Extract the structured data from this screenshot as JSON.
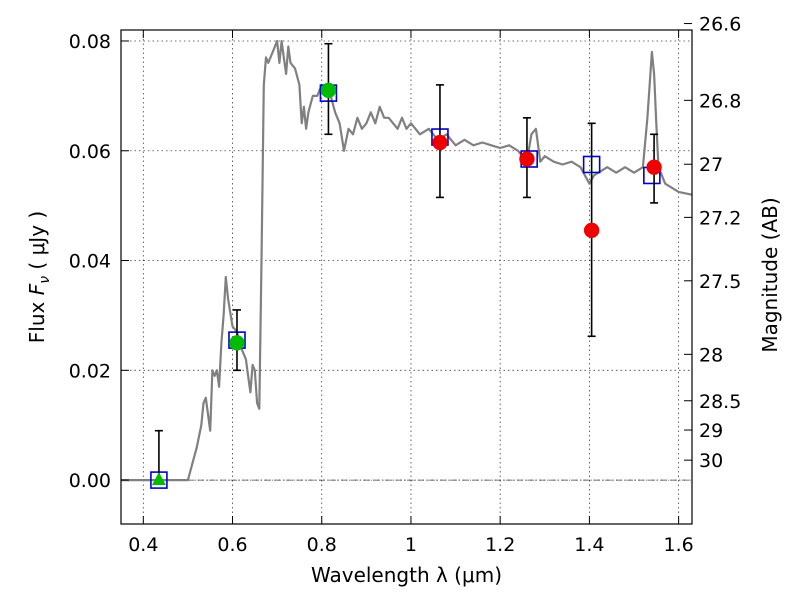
{
  "chart_data": {
    "type": "scatter",
    "title": "",
    "xlabel": "Wavelength  λ (μm)",
    "ylabel": "Flux  F_ν  ( μJy )",
    "ylabel_parts": {
      "prefix": "Flux  ",
      "symbol": "F",
      "subscript": "ν",
      "unit": "  ( μJy )"
    },
    "y2label": "Magnitude (AB)",
    "xlim": [
      0.35,
      1.63
    ],
    "ylim": [
      -0.008,
      0.082
    ],
    "grid": true,
    "x_ticks": [
      {
        "value": 0.4,
        "label": "0.4"
      },
      {
        "value": 0.6,
        "label": "0.6"
      },
      {
        "value": 0.8,
        "label": "0.8"
      },
      {
        "value": 1.0,
        "label": "1"
      },
      {
        "value": 1.2,
        "label": "1.2"
      },
      {
        "value": 1.4,
        "label": "1.4"
      },
      {
        "value": 1.6,
        "label": "1.6"
      }
    ],
    "y_ticks": [
      {
        "value": 0.0,
        "label": "0.00"
      },
      {
        "value": 0.02,
        "label": "0.02"
      },
      {
        "value": 0.04,
        "label": "0.04"
      },
      {
        "value": 0.06,
        "label": "0.06"
      },
      {
        "value": 0.08,
        "label": "0.08"
      }
    ],
    "y2_ticks": [
      {
        "value": 26.6,
        "label": "26.6"
      },
      {
        "value": 26.8,
        "label": "26.8"
      },
      {
        "value": 27.0,
        "label": "27"
      },
      {
        "value": 27.2,
        "label": "27.2"
      },
      {
        "value": 27.5,
        "label": "27.5"
      },
      {
        "value": 28.0,
        "label": "28"
      },
      {
        "value": 28.5,
        "label": "28.5"
      },
      {
        "value": 29.0,
        "label": "29"
      },
      {
        "value": 30.0,
        "label": "30"
      }
    ],
    "series": [
      {
        "type": "line",
        "color": "#808080",
        "x": [
          0.35,
          0.44,
          0.5,
          0.52,
          0.53,
          0.535,
          0.54,
          0.55,
          0.555,
          0.56,
          0.565,
          0.57,
          0.575,
          0.58,
          0.585,
          0.59,
          0.6,
          0.61,
          0.62,
          0.63,
          0.635,
          0.64,
          0.645,
          0.65,
          0.655,
          0.66,
          0.665,
          0.67,
          0.675,
          0.68,
          0.69,
          0.7,
          0.705,
          0.71,
          0.715,
          0.72,
          0.725,
          0.73,
          0.74,
          0.75,
          0.755,
          0.76,
          0.765,
          0.77,
          0.78,
          0.79,
          0.8,
          0.82,
          0.83,
          0.84,
          0.85,
          0.86,
          0.87,
          0.88,
          0.89,
          0.9,
          0.91,
          0.92,
          0.93,
          0.94,
          0.95,
          0.96,
          0.97,
          0.98,
          0.99,
          1.0,
          1.02,
          1.04,
          1.06,
          1.08,
          1.1,
          1.12,
          1.14,
          1.16,
          1.18,
          1.2,
          1.22,
          1.24,
          1.26,
          1.27,
          1.28,
          1.29,
          1.3,
          1.32,
          1.34,
          1.36,
          1.38,
          1.4,
          1.41,
          1.42,
          1.44,
          1.46,
          1.48,
          1.5,
          1.52,
          1.53,
          1.54,
          1.545,
          1.55,
          1.555,
          1.56,
          1.57,
          1.58,
          1.6,
          1.63
        ],
        "y": [
          0.0,
          0.0,
          0.0,
          0.006,
          0.01,
          0.014,
          0.015,
          0.009,
          0.02,
          0.019,
          0.02,
          0.017,
          0.025,
          0.03,
          0.037,
          0.033,
          0.028,
          0.027,
          0.024,
          0.022,
          0.019,
          0.016,
          0.021,
          0.02,
          0.014,
          0.013,
          0.04,
          0.072,
          0.077,
          0.076,
          0.078,
          0.08,
          0.076,
          0.08,
          0.077,
          0.074,
          0.079,
          0.076,
          0.075,
          0.072,
          0.065,
          0.068,
          0.064,
          0.067,
          0.07,
          0.07,
          0.072,
          0.07,
          0.067,
          0.065,
          0.06,
          0.064,
          0.063,
          0.066,
          0.064,
          0.065,
          0.067,
          0.065,
          0.068,
          0.066,
          0.066,
          0.065,
          0.064,
          0.066,
          0.064,
          0.065,
          0.063,
          0.064,
          0.062,
          0.063,
          0.061,
          0.062,
          0.061,
          0.0615,
          0.061,
          0.0605,
          0.061,
          0.06,
          0.058,
          0.063,
          0.064,
          0.058,
          0.059,
          0.058,
          0.0575,
          0.058,
          0.057,
          0.054,
          0.0555,
          0.056,
          0.057,
          0.056,
          0.057,
          0.056,
          0.057,
          0.066,
          0.078,
          0.074,
          0.065,
          0.057,
          0.056,
          0.054,
          0.0535,
          0.0525,
          0.052
        ]
      },
      {
        "type": "scatter",
        "marker": "square-open",
        "color": "#0000cc",
        "x": [
          0.435,
          0.61,
          0.815,
          1.065,
          1.265,
          1.405,
          1.54
        ],
        "y": [
          0.0,
          0.0255,
          0.0705,
          0.0625,
          0.0585,
          0.0575,
          0.0555
        ]
      },
      {
        "type": "scatter",
        "marker": "circle",
        "color": "#00bb00",
        "x": [
          0.61,
          0.815
        ],
        "y": [
          0.025,
          0.071
        ],
        "yerr_low": [
          0.02,
          0.063
        ],
        "yerr_high": [
          0.031,
          0.0795
        ]
      },
      {
        "type": "scatter",
        "marker": "triangle",
        "color": "#00bb00",
        "x": [
          0.435
        ],
        "y": [
          0.0
        ],
        "yerr_low": [
          0.0
        ],
        "yerr_high": [
          0.009
        ]
      },
      {
        "type": "scatter",
        "marker": "circle",
        "color": "#ee0000",
        "x": [
          1.065,
          1.26,
          1.405,
          1.545
        ],
        "y": [
          0.0615,
          0.0585,
          0.0455,
          0.057
        ],
        "yerr_low": [
          0.0515,
          0.0515,
          0.0262,
          0.0505
        ],
        "yerr_high": [
          0.072,
          0.066,
          0.065,
          0.063
        ]
      }
    ]
  }
}
